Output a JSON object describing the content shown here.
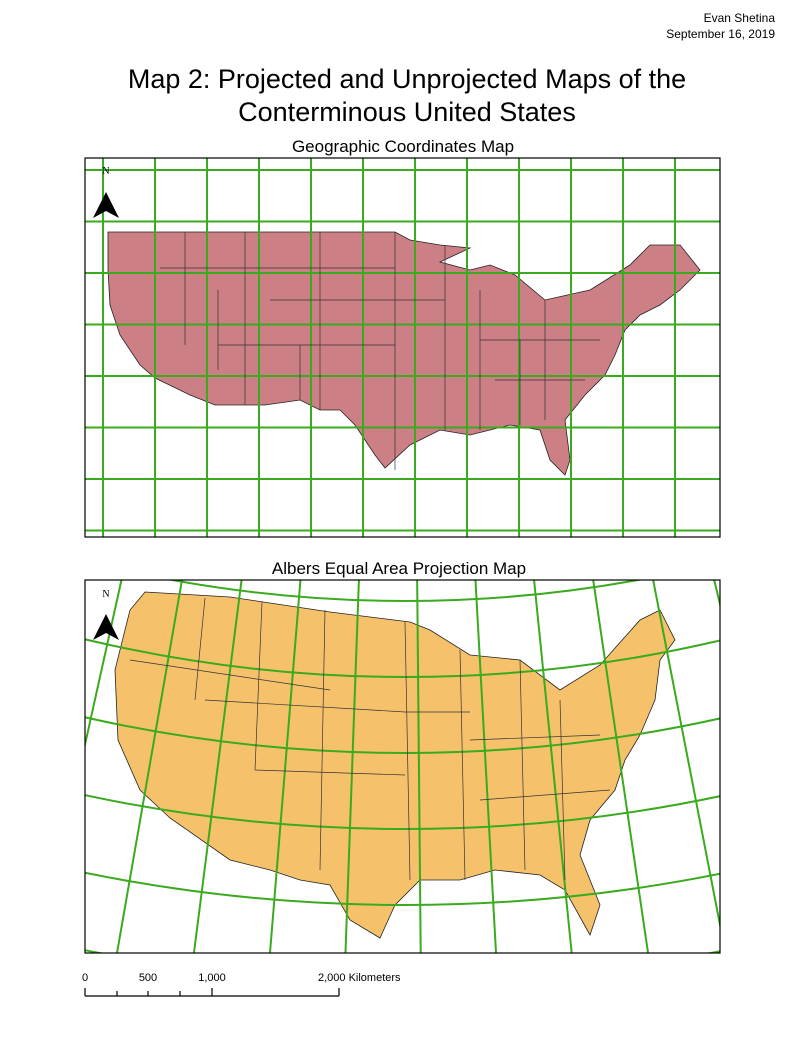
{
  "header": {
    "author": "Evan Shetina",
    "date": "September 16, 2019"
  },
  "title": {
    "line1": "Map 2: Projected and Unprojected Maps of the",
    "line2": "Conterminous United States"
  },
  "maps": [
    {
      "title": "Geographic Coordinates Map",
      "north": "N"
    },
    {
      "title": "Albers Equal Area Projection Map",
      "north": "N"
    }
  ],
  "scale_bar": {
    "labels": [
      "0",
      "500",
      "1,000",
      "2,000 Kilometers"
    ]
  }
}
